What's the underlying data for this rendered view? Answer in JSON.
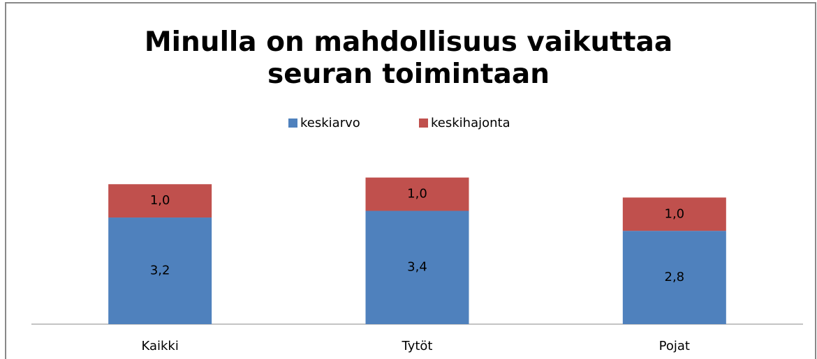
{
  "chart_data": {
    "type": "stacked_bar",
    "title": "Minulla on mahdollisuus vaikuttaa seuran toimintaan",
    "categories": [
      "Kaikki",
      "Tytöt",
      "Pojat"
    ],
    "series": [
      {
        "name": "keskiarvo",
        "color": "#4f81bd",
        "values": [
          3.2,
          3.4,
          2.8
        ],
        "value_labels": [
          "3,2",
          "3,4",
          "2,8"
        ]
      },
      {
        "name": "keskihajonta",
        "color": "#c0504d",
        "values": [
          1.0,
          1.0,
          1.0
        ],
        "value_labels": [
          "1,0",
          "1,0",
          "1,0"
        ]
      }
    ],
    "ylim": [
      0,
      5
    ],
    "legend": "top"
  }
}
